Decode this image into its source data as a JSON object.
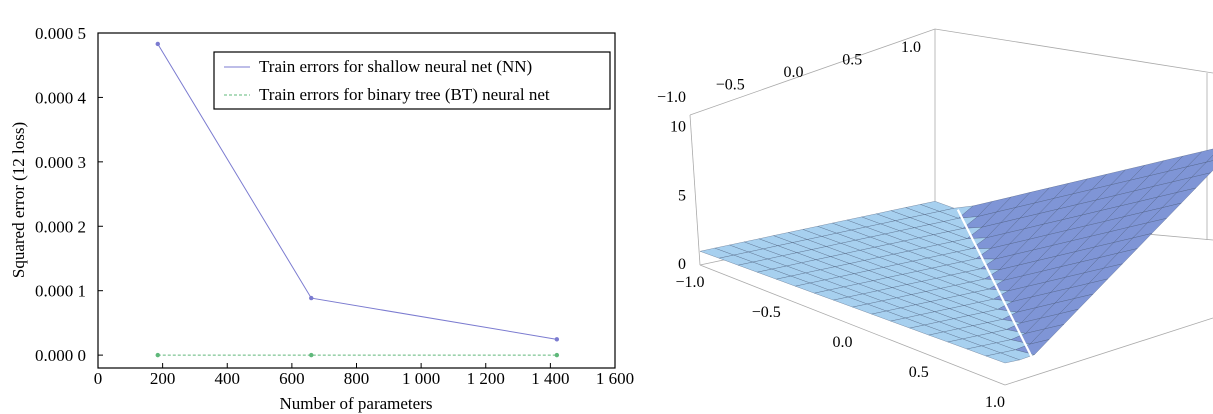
{
  "chart_data": [
    {
      "type": "line",
      "title": "",
      "xlabel": "Number of parameters",
      "ylabel": "Squared error (12 loss)",
      "xlim": [
        0,
        1600
      ],
      "ylim": [
        -2e-05,
        0.0005
      ],
      "xticks": [
        0,
        200,
        400,
        600,
        800,
        1000,
        1200,
        1400,
        1600
      ],
      "xtick_labels": [
        "0",
        "200",
        "400",
        "600",
        "800",
        "1 000",
        "1 200",
        "1 400",
        "1 600"
      ],
      "yticks": [
        0.0,
        0.0001,
        0.0002,
        0.0003,
        0.0004,
        0.0005
      ],
      "ytick_labels": [
        "0.000 0",
        "0.000 1",
        "0.000 2",
        "0.000 3",
        "0.000 4",
        "0.000 5"
      ],
      "grid": false,
      "legend_position": "top-right",
      "series": [
        {
          "name": "Train errors for shallow neural net (NN)",
          "style": "solid",
          "color": "#7b7bd0",
          "x": [
            185,
            660,
            1420
          ],
          "y": [
            0.000483,
            8.85e-05,
            2.45e-05
          ]
        },
        {
          "name": "Train errors for binary tree (BT) neural net",
          "style": "dashed",
          "color": "#5fb87a",
          "x": [
            185,
            660,
            1420
          ],
          "y": [
            0.0,
            0.0,
            0.0
          ]
        }
      ]
    },
    {
      "type": "surface3d",
      "x_ticks": [
        "−1.0",
        "−0.5",
        "0.0",
        "0.5",
        "1.0"
      ],
      "y_ticks": [
        "−1.0",
        "−0.5",
        "0.0",
        "0.5",
        "1.0"
      ],
      "z_ticks": [
        "0",
        "5",
        "10"
      ],
      "x_range": [
        -1,
        1
      ],
      "y_range": [
        -1,
        1
      ],
      "z_range": [
        0,
        12
      ],
      "grid_divisions": 16,
      "colors": {
        "dark_face": "#7f95d6",
        "light_face": "#a7d0ef",
        "ridge": "#ffffff",
        "mesh": "#3b4a6a"
      }
    }
  ]
}
